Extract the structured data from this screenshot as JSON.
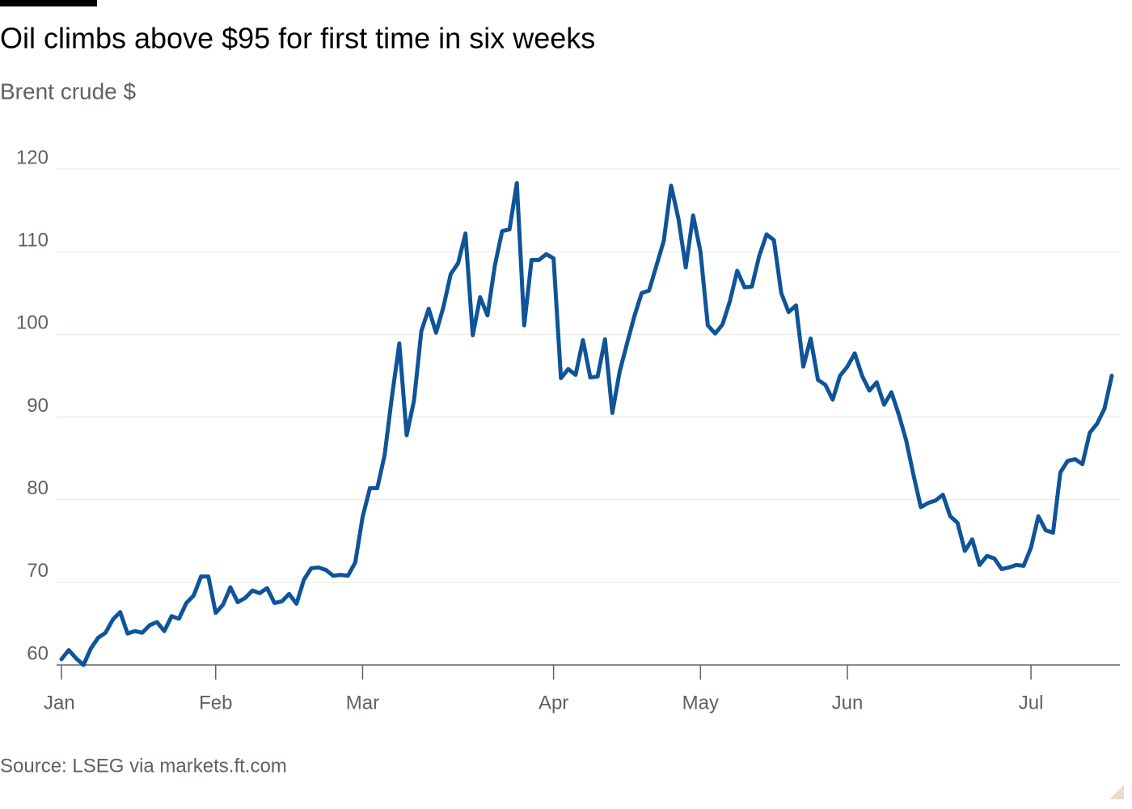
{
  "chart_data": {
    "type": "line",
    "title": "Oil climbs above $95 for first time in six weeks",
    "subtitle": "Brent crude $",
    "source": "Source: LSEG via markets.ft.com",
    "color": "#0f5499",
    "grid": true,
    "xlim": [
      0,
      143
    ],
    "xticks": [
      {
        "value": 0,
        "label": "Jan"
      },
      {
        "value": 21,
        "label": "Feb"
      },
      {
        "value": 41,
        "label": "Mar"
      },
      {
        "value": 67,
        "label": "Apr"
      },
      {
        "value": 87,
        "label": "May"
      },
      {
        "value": 107,
        "label": "Jun"
      },
      {
        "value": 132,
        "label": "Jul"
      }
    ],
    "ylim": [
      60,
      120
    ],
    "yticks": [
      60,
      70,
      80,
      90,
      100,
      110,
      120
    ],
    "values": [
      60.7,
      61.8,
      60.8,
      60.0,
      62.0,
      63.3,
      63.9,
      65.5,
      66.4,
      63.8,
      64.1,
      63.9,
      64.8,
      65.2,
      64.1,
      65.9,
      65.6,
      67.5,
      68.4,
      70.7,
      70.7,
      66.3,
      67.3,
      69.4,
      67.6,
      68.1,
      69.0,
      68.7,
      69.3,
      67.5,
      67.7,
      68.6,
      67.4,
      70.3,
      71.7,
      71.8,
      71.5,
      70.8,
      70.9,
      70.8,
      72.4,
      77.9,
      81.4,
      81.4,
      85.4,
      92.5,
      98.9,
      87.8,
      92.0,
      100.4,
      103.1,
      100.2,
      103.3,
      107.3,
      108.6,
      112.2,
      99.9,
      104.5,
      102.3,
      108.3,
      112.5,
      112.7,
      118.3,
      101.1,
      109.0,
      109.0,
      109.7,
      109.2,
      94.7,
      95.8,
      95.1,
      99.3,
      94.8,
      94.9,
      99.4,
      90.5,
      95.5,
      98.9,
      102.2,
      105.0,
      105.3,
      108.3,
      111.3,
      118.0,
      114.0,
      108.1,
      114.4,
      110.0,
      101.1,
      100.1,
      101.2,
      104.0,
      107.7,
      105.7,
      105.8,
      109.5,
      112.1,
      111.4,
      105.0,
      102.7,
      103.5,
      96.1,
      99.5,
      94.5,
      93.9,
      92.1,
      95.0,
      96.1,
      97.7,
      95.0,
      93.2,
      94.2,
      91.5,
      93.0,
      90.3,
      87.2,
      83.0,
      79.1,
      79.6,
      79.9,
      80.6,
      78.0,
      77.2,
      73.8,
      75.2,
      72.1,
      73.2,
      72.9,
      71.6,
      71.8,
      72.1,
      72.0,
      74.2,
      78.0,
      76.3,
      76.0,
      83.3,
      84.7,
      84.9,
      84.3,
      88.1,
      89.2,
      91.0,
      95.0
    ]
  }
}
